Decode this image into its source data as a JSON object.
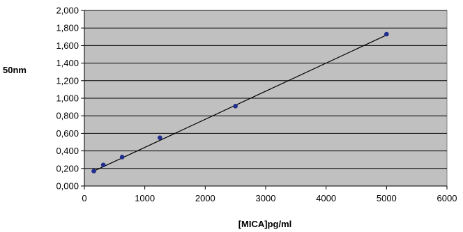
{
  "chart_data": {
    "type": "scatter",
    "title": "",
    "xlabel": "[MICA]pg/ml",
    "ylabel": "50nm",
    "xlim": [
      0,
      6000
    ],
    "ylim": [
      0,
      2
    ],
    "x_ticks": [
      0,
      1000,
      2000,
      3000,
      4000,
      5000,
      6000
    ],
    "x_tick_labels": [
      "0",
      "1000",
      "2000",
      "3000",
      "4000",
      "5000",
      "6000"
    ],
    "y_ticks": [
      0,
      0.2,
      0.4,
      0.6,
      0.8,
      1.0,
      1.2,
      1.4,
      1.6,
      1.8,
      2.0
    ],
    "y_tick_labels": [
      "0,000",
      "0,200",
      "0,400",
      "0,600",
      "0,800",
      "1,000",
      "1,200",
      "1,400",
      "1,600",
      "1,800",
      "2,000"
    ],
    "grid": "horizontal",
    "background_color": "#c0c0c0",
    "marker_color": "#1f2e8c",
    "line_color": "#000000",
    "series": [
      {
        "x": [
          156,
          313,
          625,
          1250,
          2500,
          5000
        ],
        "y": [
          0.17,
          0.24,
          0.33,
          0.55,
          0.91,
          1.73
        ]
      }
    ],
    "trendline": {
      "x": [
        156,
        5000
      ],
      "y": [
        0.17,
        1.72
      ]
    }
  }
}
